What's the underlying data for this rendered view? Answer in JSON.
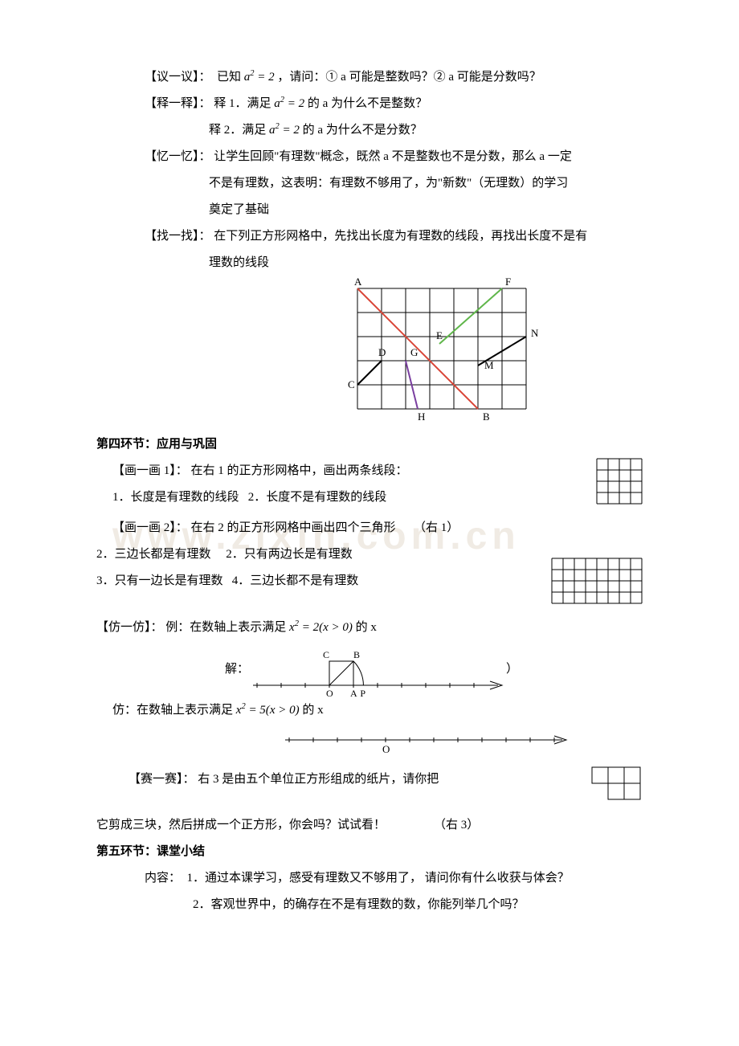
{
  "sections": {
    "yiyi": {
      "label": "【议一议】：",
      "text_before": "已知",
      "formula": "a² = 2",
      "text_after": "，请问：① a 可能是整数吗？② a 可能是分数吗？"
    },
    "shiyi": {
      "label": "【释一释】：",
      "item1_prefix": "释 1．满足",
      "item1_formula": "a² = 2",
      "item1_suffix": "的 a 为什么不是整数？",
      "item2_prefix": "释 2．满足",
      "item2_formula": "a² = 2",
      "item2_suffix": "的 a 为什么不是分数？"
    },
    "yiyi2": {
      "label": "【忆一忆】：",
      "line1": "让学生回顾\"有理数\"概念，既然 a 不是整数也不是分数，那么 a 一定",
      "line2": "不是有理数，这表明：有理数不够用了，为\"新数\"（无理数）的学习",
      "line3": "奠定了基础"
    },
    "zhaozhao": {
      "label": "【找一找】：",
      "line1": "在下列正方形网格中，先找出长度为有理数的线段，再找出长度不是有",
      "line2": "理数的线段"
    },
    "sec4_title": "第四环节：应用与巩固",
    "hua1": {
      "label": "【画一画 1】：",
      "text": "在右 1 的正方形网格中，画出两条线段：",
      "item1": "1．长度是有理数的线段",
      "item2": "2．长度不是有理数的线段"
    },
    "hua2": {
      "label": "【画一画 2】：",
      "text": "在右 2 的正方形网格中画出四个三角形",
      "right_label": "（右 1）",
      "row1a": "2．三边长都是有理数",
      "row1b": "2．只有两边长是有理数",
      "row2a": "3．只有一边长是有理数",
      "row2b": "4．三边长都不是有理数"
    },
    "fang": {
      "label": "【仿一仿】：",
      "text_prefix": "例：在数轴上表示满足",
      "formula": "x² = 2 (x > 0)",
      "text_suffix": "的 x",
      "jie": "解：",
      "paren": "）",
      "fang2_prefix": "仿：在数轴上表示满足",
      "fang2_formula": "x² = 5 (x > 0)",
      "fang2_suffix": "的 x"
    },
    "sai": {
      "label": "【赛一赛】：",
      "line1": "右 3 是由五个单位正方形组成的纸片，请你把",
      "line2": "它剪成三块，然后拼成一个正方形，你会吗？试试看！",
      "right_label": "（右 3）"
    },
    "sec5_title": "第五环节：课堂小结",
    "summary": {
      "prefix": "内容：",
      "item1": "1．通过本课学习，感受有理数又不够用了， 请问你有什么收获与体会？",
      "item2": "2．客观世界中，的确存在不是有理数的数，你能列举几个吗？"
    }
  },
  "grid_diagram": {
    "cols": 7,
    "rows": 5,
    "cell": 30,
    "bg": "#ffffff",
    "grid_color": "#000000",
    "points": {
      "A": {
        "x": 0,
        "y": 0
      },
      "F": {
        "x": 6,
        "y": 0
      },
      "E": {
        "x": 3.4,
        "y": 2.3
      },
      "N": {
        "x": 7,
        "y": 2
      },
      "D": {
        "x": 1,
        "y": 3
      },
      "G": {
        "x": 2,
        "y": 3
      },
      "M": {
        "x": 5,
        "y": 3.2
      },
      "C": {
        "x": 0,
        "y": 4
      },
      "H": {
        "x": 2.5,
        "y": 5
      },
      "B": {
        "x": 5,
        "y": 5
      }
    },
    "segments": [
      {
        "from": "A",
        "to": "B",
        "color": "#d94638",
        "width": 2
      },
      {
        "from": "E",
        "to": "F",
        "color": "#5fb64a",
        "width": 2
      },
      {
        "from": "M",
        "to": "N",
        "color": "#000000",
        "width": 2
      },
      {
        "from": "C",
        "to": "D",
        "color": "#000000",
        "width": 2
      },
      {
        "from": "G",
        "to": "H",
        "color": "#7a3fa0",
        "width": 2
      }
    ],
    "label_font": 13
  },
  "small_grid1": {
    "cols": 4,
    "rows": 4,
    "cell": 14,
    "color": "#000000"
  },
  "small_grid2": {
    "cols": 8,
    "rows": 4,
    "cell": 14,
    "color": "#000000"
  },
  "numberline1": {
    "xmin": -3,
    "xmax": 6,
    "tick": 1,
    "O_label": "O",
    "A_label": "A",
    "P_label": "P",
    "B_label": "B",
    "C_label": "C",
    "arc_center": 0,
    "arc_r": 1.414,
    "square_side": 1,
    "line_color": "#000000"
  },
  "numberline2": {
    "xmin": -4,
    "xmax": 7,
    "tick": 1,
    "O_label": "O",
    "line_color": "#000000"
  },
  "pentomino": {
    "cells": [
      [
        0,
        0
      ],
      [
        1,
        0
      ],
      [
        2,
        0
      ],
      [
        1,
        1
      ],
      [
        2,
        1
      ]
    ],
    "cell": 20,
    "color": "#000000"
  }
}
